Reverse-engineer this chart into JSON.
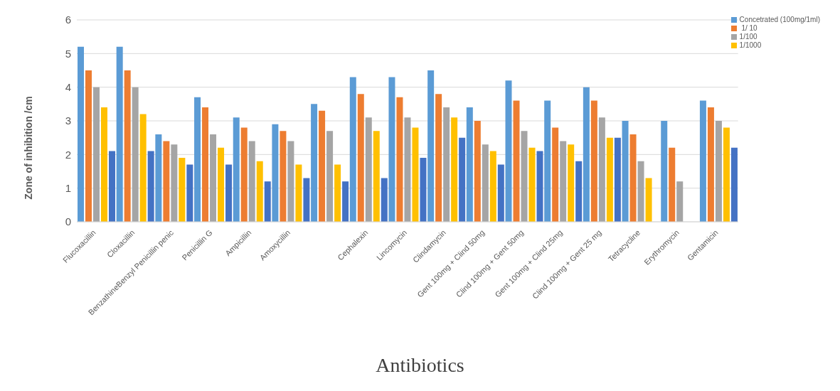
{
  "chart_data": {
    "type": "bar",
    "xlabel": "Antibiotics",
    "ylabel": "Zone of inhibition /cm",
    "categories": [
      "Flucoxacillin",
      "Cloxacillin",
      "BenzathineBenzyl Penicillin penic",
      "Penicillin G",
      "Ampicillin",
      "Amoxycillin",
      null,
      "Cephalexin",
      "Lincomycin",
      "Clindamycin",
      "Gent 100mg + Clind 50mg",
      "Clind 100mg + Gent 50mg",
      "Gent 100mg + Clind 25mg",
      "Clind 100mg + Gent 25 mg",
      "Tetracycline",
      "Erythromycin",
      "Gentamicin"
    ],
    "series": [
      {
        "name": "Concetrated (100mg/1ml)",
        "color": "#5b9bd5",
        "values": [
          5.2,
          5.2,
          2.6,
          3.7,
          3.1,
          2.9,
          3.5,
          4.3,
          4.3,
          4.5,
          3.4,
          4.2,
          3.6,
          4.0,
          3.0,
          3.0,
          3.6
        ]
      },
      {
        "name": " 1/  10",
        "color": "#ed7d31",
        "values": [
          4.5,
          4.5,
          2.4,
          3.4,
          2.8,
          2.7,
          3.3,
          3.8,
          3.7,
          3.8,
          3.0,
          3.6,
          2.8,
          3.6,
          2.6,
          2.2,
          3.4
        ]
      },
      {
        "name": "1/100",
        "color": "#a5a5a5",
        "values": [
          4.0,
          4.0,
          2.3,
          2.6,
          2.4,
          2.4,
          2.7,
          3.1,
          3.1,
          3.4,
          2.3,
          2.7,
          2.4,
          3.1,
          1.8,
          1.2,
          3.0
        ]
      },
      {
        "name": "1/1000",
        "color": "#ffc000",
        "values": [
          3.4,
          3.2,
          1.9,
          2.2,
          1.8,
          1.7,
          1.7,
          2.7,
          2.8,
          3.1,
          2.1,
          2.2,
          2.3,
          2.5,
          1.3,
          null,
          2.8
        ]
      },
      {
        "color": "#4472c4",
        "values": [
          2.1,
          2.1,
          1.7,
          1.7,
          1.2,
          1.3,
          1.2,
          1.3,
          1.9,
          2.5,
          1.7,
          2.1,
          1.8,
          2.5,
          null,
          null,
          2.2
        ]
      }
    ],
    "ylim": [
      0,
      6
    ],
    "yticks": [
      0,
      1,
      2,
      3,
      4,
      5,
      6
    ],
    "grid": "y",
    "legend": "top right"
  }
}
